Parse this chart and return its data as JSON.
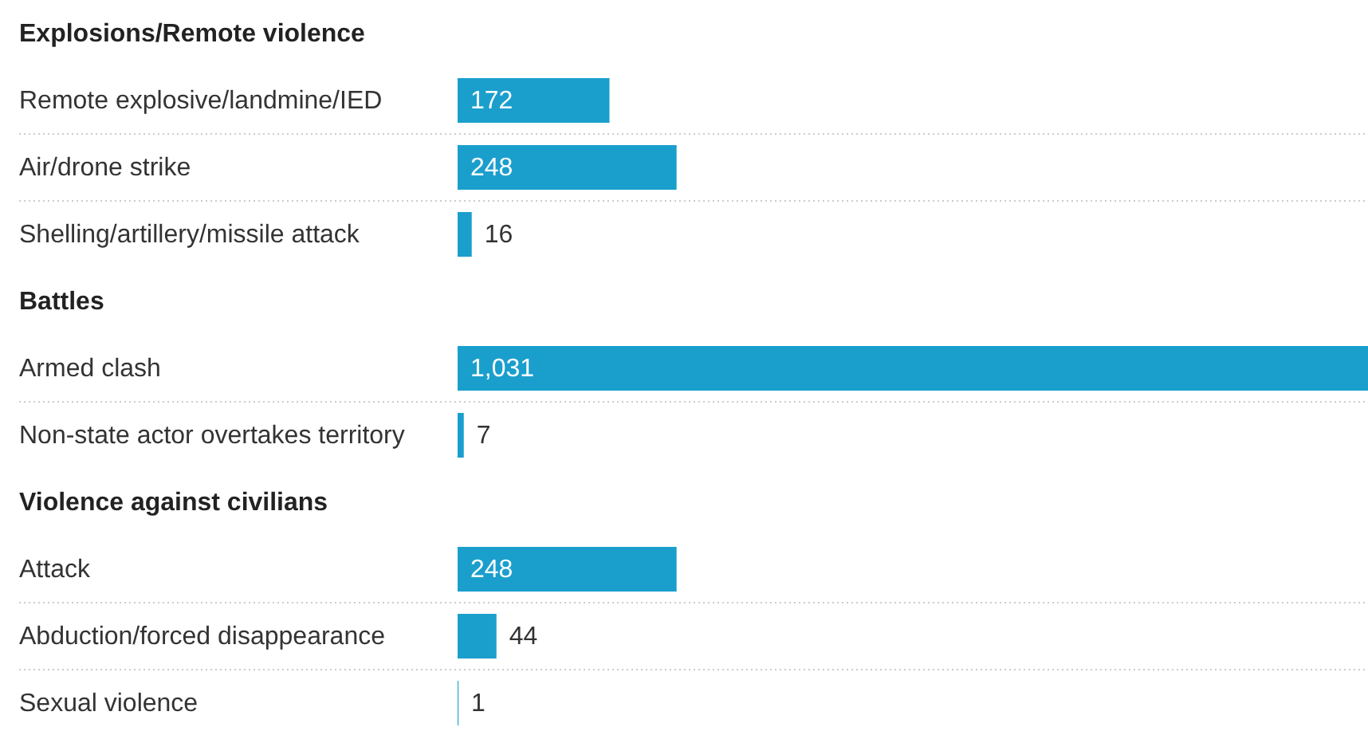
{
  "chart_data": {
    "type": "bar",
    "orientation": "horizontal",
    "categories": [
      "Explosions/Remote violence",
      "Remote explosive/landmine/IED",
      "Air/drone strike",
      "Shelling/artillery/missile attack",
      "Battles",
      "Armed clash",
      "Non-state actor overtakes territory",
      "Violence against civilians",
      "Attack",
      "Abduction/forced disappearance",
      "Sexual violence"
    ],
    "values": [
      null,
      172,
      248,
      16,
      null,
      1031,
      7,
      null,
      248,
      44,
      1
    ],
    "value_labels": [
      null,
      "172",
      "248",
      "16",
      null,
      "1,031",
      "7",
      null,
      "248",
      "44",
      "1"
    ],
    "color": "#1a9fcd",
    "grid": "y"
  }
}
